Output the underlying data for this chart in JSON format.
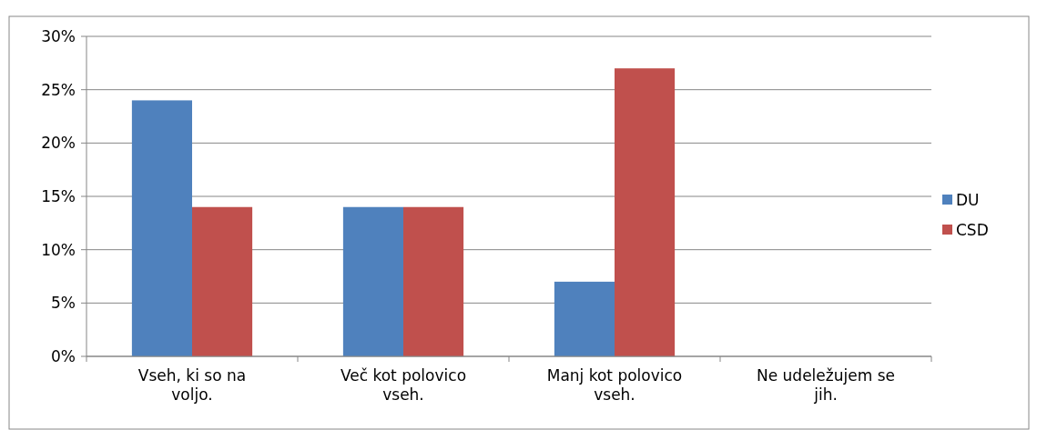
{
  "chart_data": {
    "type": "bar",
    "categories": [
      "Vseh, ki so na voljo.",
      "Več kot polovico vseh.",
      "Manj kot polovico vseh.",
      "Ne udeležujem se jih."
    ],
    "series": [
      {
        "name": "DU",
        "color": "#4f81bd",
        "values": [
          24,
          14,
          7,
          0
        ]
      },
      {
        "name": "CSD",
        "color": "#c0504d",
        "values": [
          14,
          14,
          27,
          0
        ]
      }
    ],
    "ylim": [
      0,
      30
    ],
    "yticks": [
      {
        "value": 0,
        "label": "0%"
      },
      {
        "value": 5,
        "label": "5%"
      },
      {
        "value": 10,
        "label": "10%"
      },
      {
        "value": 15,
        "label": "15%"
      },
      {
        "value": 20,
        "label": "20%"
      },
      {
        "value": 25,
        "label": "25%"
      },
      {
        "value": 30,
        "label": "30%"
      }
    ],
    "grid": "y",
    "legend": "right"
  }
}
